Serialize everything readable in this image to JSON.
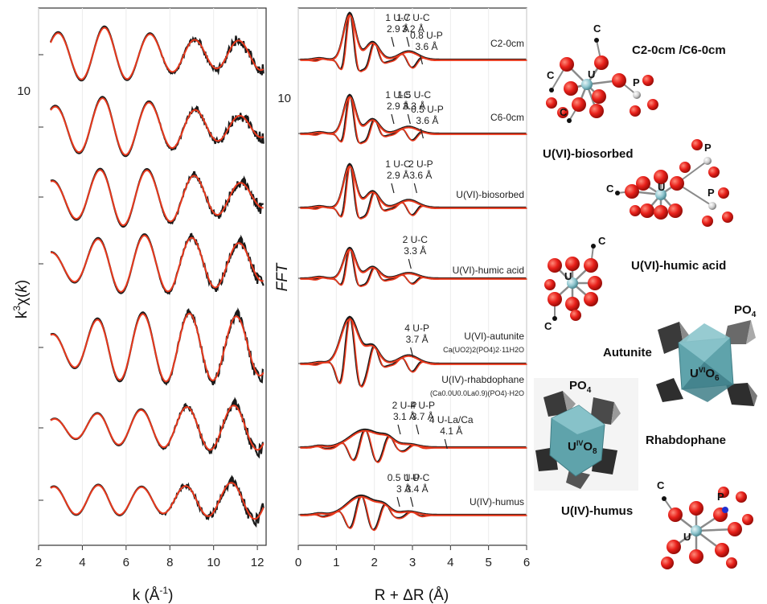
{
  "colors": {
    "experiment": "#1a1a1a",
    "fit": "#e8391d",
    "oxygen": "#e8201a",
    "uranium": "#8fc6cf",
    "phosphorus": "#cfcfcf",
    "carbon": "#111111",
    "polyhedron_dark": "#3a3a3a",
    "polyhedron_light": "#8a8a8a",
    "uo6": "#5fa3ab"
  },
  "chart_data": [
    {
      "type": "line",
      "panel": "exafs",
      "xlabel": "k (Å-1)",
      "xlabel_base": "k (Å",
      "xlabel_sup": "-1",
      "xlabel_end": ")",
      "ylabel_pre": "k",
      "ylabel_sup": "3",
      "ylabel_mid": "χ(",
      "ylabel_it": "k",
      "ylabel_end": ")",
      "xlim": [
        2,
        12.4
      ],
      "xticks": [
        "2",
        "4",
        "6",
        "8",
        "10",
        "12"
      ],
      "scale_label": "10",
      "series": [
        {
          "kind": "experiment+fit",
          "offset_rank": 1
        },
        {
          "kind": "experiment+fit",
          "offset_rank": 2
        },
        {
          "kind": "experiment+fit",
          "offset_rank": 3
        },
        {
          "kind": "experiment+fit",
          "offset_rank": 4
        },
        {
          "kind": "experiment+fit",
          "offset_rank": 5
        },
        {
          "kind": "experiment+fit",
          "offset_rank": 6
        },
        {
          "kind": "experiment+fit",
          "offset_rank": 7
        }
      ]
    },
    {
      "type": "line",
      "panel": "fft",
      "xlabel": "R + ΔR (Å)",
      "ylabel": "FFT",
      "xlim": [
        0,
        6
      ],
      "xticks": [
        "0",
        "1",
        "2",
        "3",
        "4",
        "5",
        "6"
      ],
      "scale_label": "10",
      "series": [
        {
          "name": "C2-0cm",
          "annotations": [
            {
              "l1": "1 U-C",
              "l2": "2.9 Å",
              "r": 2.45
            },
            {
              "l1": "1.7 U-C",
              "l2": "3.2 Å",
              "r": 2.85
            },
            {
              "l1": "0.8 U-P",
              "l2": "3.6 Å",
              "r": 3.2
            }
          ]
        },
        {
          "name": "C6-0cm",
          "annotations": [
            {
              "l1": "1 U-C",
              "l2": "2.9 Å",
              "r": 2.45
            },
            {
              "l1": "1.5 U-C",
              "l2": "3.3 Å",
              "r": 2.88
            },
            {
              "l1": "0.5 U-P",
              "l2": "3.6 Å",
              "r": 3.22
            }
          ]
        },
        {
          "name": "U(VI)-biosorbed",
          "annotations": [
            {
              "l1": "1 U-C",
              "l2": "2.9 Å",
              "r": 2.45
            },
            {
              "l1": "2 U-P",
              "l2": "3.6 Å",
              "r": 3.05
            }
          ]
        },
        {
          "name": "U(VI)-humic acid",
          "annotations": [
            {
              "l1": "2 U-C",
              "l2": "3.3 Å",
              "r": 2.9
            }
          ]
        },
        {
          "name": "U(VI)-autunite",
          "formula": "Ca(UO2)2(PO4)2·11H2O",
          "annotations": [
            {
              "l1": "4 U-P",
              "l2": "3.7 Å",
              "r": 2.95
            }
          ]
        },
        {
          "name": "U(IV)-rhabdophane",
          "formula": "(Ca0.0U0.0La0.9)(PO4)·H2O",
          "annotations": [
            {
              "l1": "2 U-P",
              "l2": "3.1 Å",
              "r": 2.62
            },
            {
              "l1": "4 U-P",
              "l2": "3.7 Å",
              "r": 3.1
            },
            {
              "l1": "4 U-La/Ca",
              "l2": "4.1 Å",
              "r": 3.85
            }
          ]
        },
        {
          "name": "U(IV)-humus",
          "annotations": [
            {
              "l1": "0.5 U-P",
              "l2": "3 Å",
              "r": 2.6
            },
            {
              "l1": "1 U-C",
              "l2": "3.4 Å",
              "r": 2.95
            }
          ]
        }
      ]
    }
  ],
  "structures": {
    "c2_c6": {
      "title": "C2-0cm /C6-0cm",
      "atoms": [
        "C",
        "C",
        "C",
        "U",
        "P"
      ]
    },
    "biosorbed": {
      "title": "U(VI)-biosorbed",
      "atoms": [
        "C",
        "U",
        "P",
        "P"
      ]
    },
    "humic": {
      "title": "U(VI)-humic acid",
      "atoms": [
        "C",
        "U",
        "C"
      ]
    },
    "autunite": {
      "title": "Autunite",
      "po4": "PO",
      "po4_sub": "4",
      "center_pre": "U",
      "center_sup": "VI",
      "center_mid": "O",
      "center_sub": "6"
    },
    "rhabdophane": {
      "title": "Rhabdophane",
      "po4": "PO",
      "po4_sub": "4",
      "center_pre": "U",
      "center_sup": "IV",
      "center_mid": "O",
      "center_sub": "8"
    },
    "humus": {
      "title": "U(IV)-humus",
      "atoms": [
        "C",
        "P",
        "U"
      ]
    }
  }
}
